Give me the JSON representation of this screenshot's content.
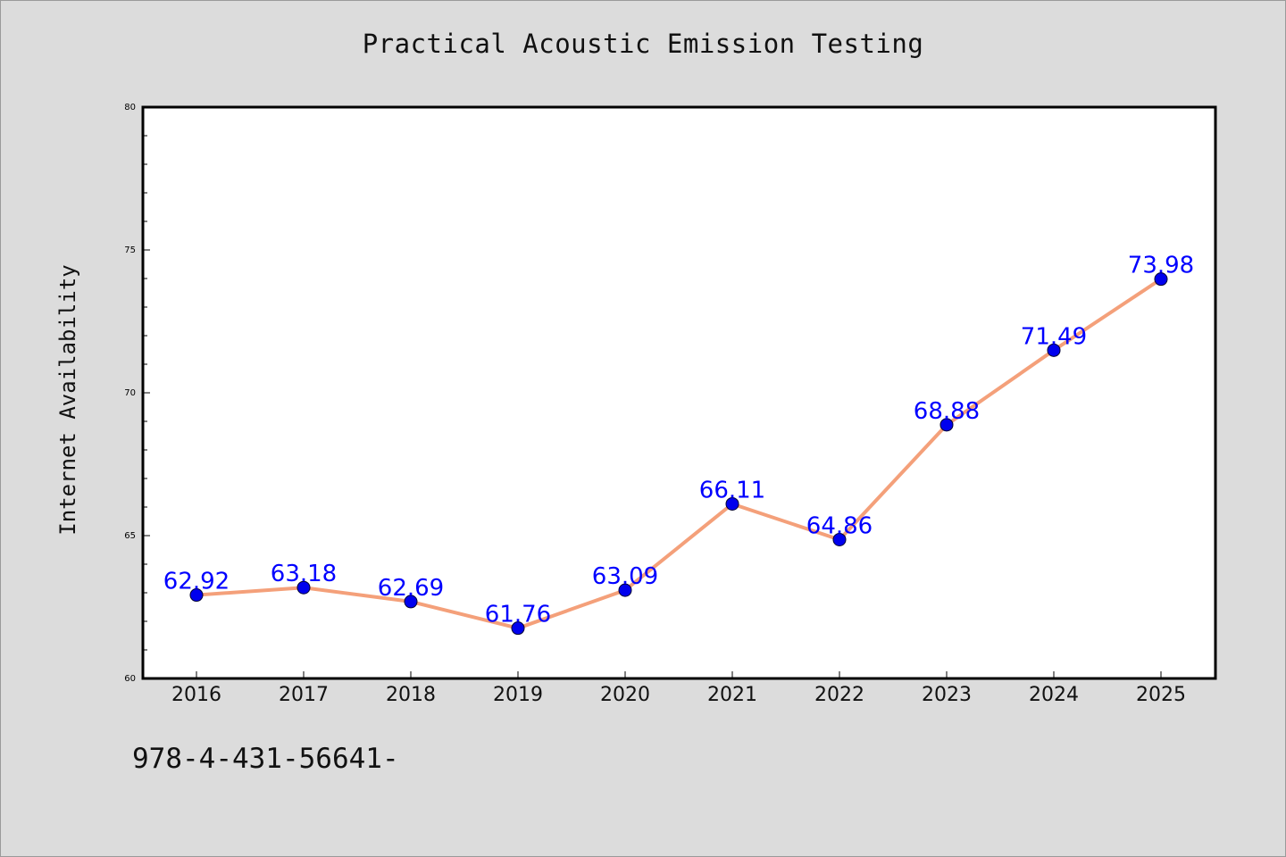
{
  "chart_data": {
    "type": "line",
    "title": "Practical Acoustic Emission Testing",
    "ylabel": "Internet Availability",
    "xlabel": "",
    "categories": [
      "2016",
      "2017",
      "2018",
      "2019",
      "2020",
      "2021",
      "2022",
      "2023",
      "2024",
      "2025"
    ],
    "series": [
      {
        "values": [
          62.92,
          63.18,
          62.69,
          61.76,
          63.09,
          66.11,
          64.86,
          68.88,
          71.49,
          73.98
        ],
        "labels": [
          "62.92",
          "63.18",
          "62.69",
          "61.76",
          "63.09",
          "66.11",
          "64.86",
          "68.88",
          "71.49",
          "73.98"
        ],
        "line_color": "#f4a07a",
        "marker_color": "#0000ee"
      }
    ],
    "ylim": [
      60,
      80
    ],
    "y_ticks": [
      60,
      65,
      70,
      75,
      80
    ],
    "y_tick_labels": [
      "60",
      "65",
      "70",
      "75",
      "80"
    ],
    "label_color": "#0000ff",
    "grid": false,
    "legend": "none"
  },
  "footer": {
    "text": "978-4-431-56641-"
  },
  "colors": {
    "background": "#dcdcdc",
    "plot_background": "#ffffff"
  }
}
